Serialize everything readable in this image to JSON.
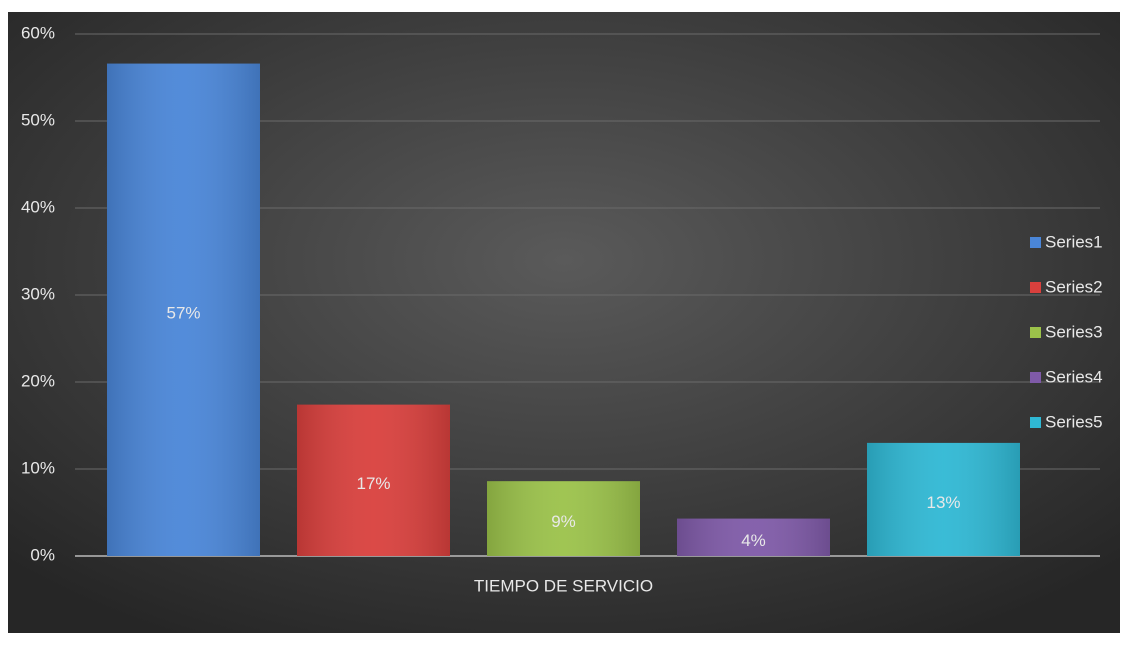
{
  "chart_data": {
    "type": "bar",
    "categories": [
      "TIEMPO DE SERVICIO"
    ],
    "series": [
      {
        "name": "Series1",
        "color": "#4a86d8",
        "values": [
          56.6
        ],
        "value_labels": [
          "57%"
        ]
      },
      {
        "name": "Series2",
        "color": "#d9403d",
        "values": [
          17.4
        ],
        "value_labels": [
          "17%"
        ]
      },
      {
        "name": "Series3",
        "color": "#9bc24a",
        "values": [
          8.6
        ],
        "value_labels": [
          "9%"
        ]
      },
      {
        "name": "Series4",
        "color": "#7f5aa8",
        "values": [
          4.3
        ],
        "value_labels": [
          "4%"
        ]
      },
      {
        "name": "Series5",
        "color": "#2fb8d4",
        "values": [
          13
        ],
        "value_labels": [
          "13%"
        ]
      }
    ],
    "ylim": [
      0,
      60
    ],
    "yticks": [
      {
        "value": 0,
        "label": "0%"
      },
      {
        "value": 10,
        "label": "10%"
      },
      {
        "value": 20,
        "label": "20%"
      },
      {
        "value": 30,
        "label": "30%"
      },
      {
        "value": 40,
        "label": "40%"
      },
      {
        "value": 50,
        "label": "50%"
      },
      {
        "value": 60,
        "label": "60%"
      }
    ],
    "grid": true,
    "legend": "right"
  }
}
